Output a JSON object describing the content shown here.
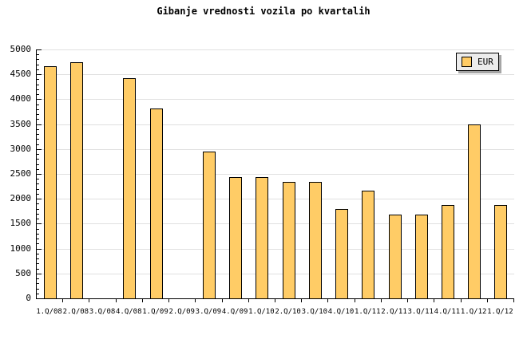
{
  "title": "Gibanje vrednosti vozila po kvartalih",
  "legend": {
    "label": "EUR"
  },
  "colors": {
    "background": "#ffffff",
    "bar_fill": "#ffcc66",
    "bar_border": "#000000",
    "gridline": "#e0e0e0",
    "axis": "#000000",
    "legend_bg": "#ececec",
    "legend_shadow": "#a6a6a6"
  },
  "chart_data": {
    "type": "bar",
    "title": "Gibanje vrednosti vozila po kvartalih",
    "series_name": "EUR",
    "categories": [
      "1.Q/08",
      "2.Q/08",
      "3.Q/08",
      "4.Q/08",
      "1.Q/09",
      "2.Q/09",
      "3.Q/09",
      "4.Q/09",
      "1.Q/10",
      "2.Q/10",
      "3.Q/10",
      "4.Q/10",
      "1.Q/11",
      "2.Q/11",
      "3.Q/11",
      "4.Q/11",
      "1.Q/12",
      "1.Q/12"
    ],
    "values": [
      4670,
      4750,
      null,
      4420,
      3810,
      null,
      2950,
      2430,
      2430,
      2340,
      2340,
      1790,
      2170,
      1690,
      1690,
      1880,
      3490,
      1880
    ],
    "xlabel": "",
    "ylabel": "",
    "ylim": [
      0,
      5000
    ],
    "ytick_step": 500,
    "minor_tick_step": 100,
    "yticklabels": [
      "0",
      "500",
      "1000",
      "1500",
      "2000",
      "2500",
      "3000",
      "3500",
      "4000",
      "4500",
      "5000"
    ],
    "grid": true,
    "legend_position": "top-right"
  }
}
